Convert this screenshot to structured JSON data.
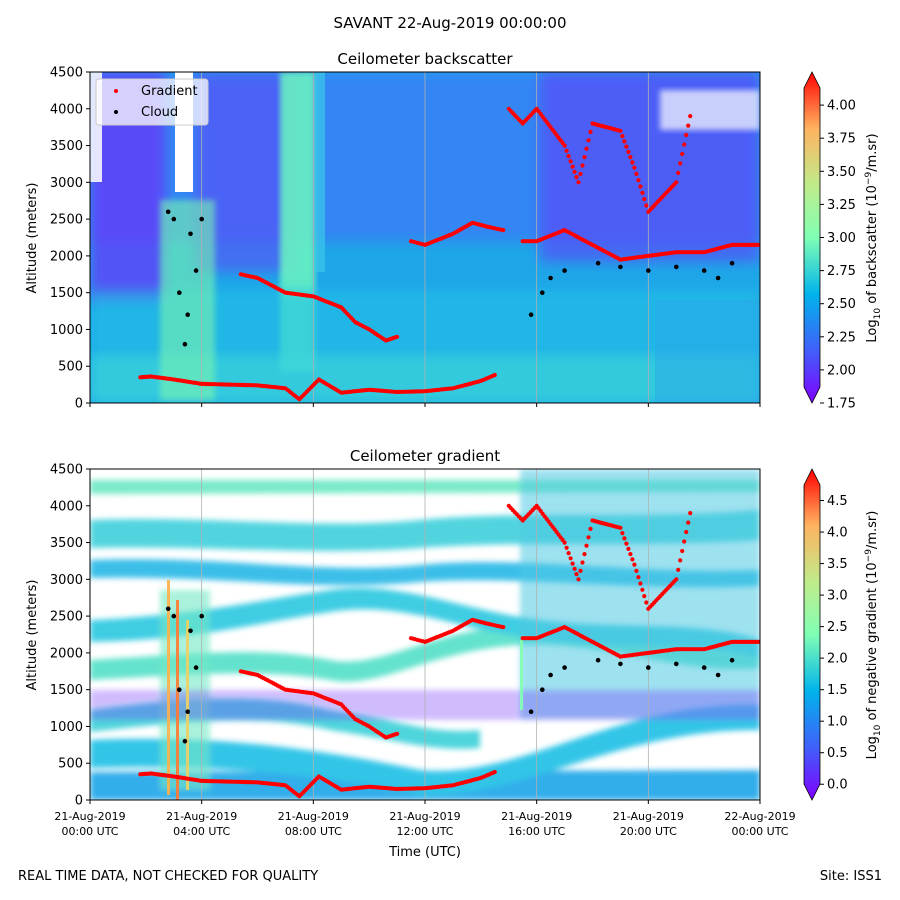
{
  "figure": {
    "title": "SAVANT 22-Aug-2019 00:00:00",
    "footer_note": "REAL TIME DATA, NOT CHECKED FOR QUALITY",
    "footer_site": "Site: ISS1"
  },
  "chart_data": [
    {
      "type": "heatmap",
      "title": "Ceilometer backscatter",
      "ylabel": "Altitude (meters)",
      "xlabel": "",
      "ylim": [
        0,
        4500
      ],
      "yticks": [
        0,
        500,
        1000,
        1500,
        2000,
        2500,
        3000,
        3500,
        4000,
        4500
      ],
      "xlim_hours": [
        0,
        24
      ],
      "grid": "vertical at 4-hour ticks",
      "legend": {
        "placement": "top-left",
        "entries": [
          {
            "label": "Gradient",
            "color": "#ff0000"
          },
          {
            "label": "Cloud",
            "color": "#000000"
          }
        ]
      },
      "colorbar": {
        "label_prefix": "Log",
        "label_sub": "10",
        "label_mid": " of backscatter (10",
        "label_sup": "−9",
        "label_suffix": "/m.sr)",
        "range": [
          1.75,
          4.25
        ],
        "ticks": [
          "1.75",
          "2.00",
          "2.25",
          "2.50",
          "2.75",
          "3.00",
          "3.25",
          "3.50",
          "3.75",
          "4.00"
        ],
        "colormap": "rainbow"
      },
      "gradient_series": [
        {
          "segment": "boundary-layer",
          "hours": [
            1.8,
            2.2,
            3.0,
            4.0,
            5.0,
            6.0,
            7.0,
            7.5,
            8.2,
            9.0,
            10.0,
            11.0,
            12.0,
            13.0,
            14.0,
            14.5
          ],
          "altitude_m": [
            350,
            360,
            320,
            260,
            250,
            240,
            200,
            50,
            320,
            140,
            180,
            150,
            160,
            200,
            300,
            380
          ]
        },
        {
          "segment": "descending-layer",
          "hours": [
            5.4,
            6.0,
            7.0,
            8.0,
            9.0,
            9.5,
            10.0,
            10.6,
            11.0
          ],
          "altitude_m": [
            1750,
            1700,
            1500,
            1450,
            1300,
            1100,
            1000,
            850,
            900
          ]
        },
        {
          "segment": "rising-layer",
          "hours": [
            11.5,
            12.0,
            13.0,
            13.7,
            14.2,
            14.8
          ],
          "altitude_m": [
            2200,
            2150,
            2300,
            2450,
            2400,
            2350
          ]
        },
        {
          "segment": "evening-layer",
          "hours": [
            15.5,
            16.0,
            17.0,
            18.0,
            19.0,
            20.0,
            21.0,
            22.0,
            23.0,
            24.0
          ],
          "altitude_m": [
            2200,
            2200,
            2350,
            2150,
            1950,
            2000,
            2050,
            2050,
            2150,
            2150
          ]
        },
        {
          "segment": "upper-scatter",
          "hours": [
            15.0,
            15.5,
            16.0,
            17.0,
            17.5,
            18.0,
            19.0,
            19.5,
            20.0,
            21.0,
            21.5
          ],
          "altitude_m": [
            4000,
            3800,
            4000,
            3500,
            3000,
            3800,
            3700,
            3200,
            2600,
            3000,
            3900
          ]
        }
      ],
      "cloud_series": [
        {
          "hours": [
            2.8,
            3.0,
            3.2,
            3.4,
            3.5,
            3.6,
            3.8,
            4.0
          ],
          "altitude_m": [
            2600,
            2500,
            1500,
            800,
            1200,
            2300,
            1800,
            2500
          ]
        },
        {
          "hours": [
            15.8,
            16.2,
            16.5,
            17.0
          ],
          "altitude_m": [
            1200,
            1500,
            1700,
            1800
          ]
        },
        {
          "hours": [
            18.2,
            19.0,
            20.0,
            21.0,
            22.0,
            22.5,
            23.0
          ],
          "altitude_m": [
            1900,
            1850,
            1800,
            1850,
            1800,
            1700,
            1900
          ]
        }
      ]
    },
    {
      "type": "heatmap",
      "title": "Ceilometer gradient",
      "ylabel": "Altitude (meters)",
      "xlabel": "Time (UTC)",
      "ylim": [
        0,
        4500
      ],
      "yticks": [
        0,
        500,
        1000,
        1500,
        2000,
        2500,
        3000,
        3500,
        4000,
        4500
      ],
      "xlim_hours": [
        0,
        24
      ],
      "xticks": [
        {
          "hours": 0,
          "date": "21-Aug-2019",
          "time": "00:00 UTC"
        },
        {
          "hours": 4,
          "date": "21-Aug-2019",
          "time": "04:00 UTC"
        },
        {
          "hours": 8,
          "date": "21-Aug-2019",
          "time": "08:00 UTC"
        },
        {
          "hours": 12,
          "date": "21-Aug-2019",
          "time": "12:00 UTC"
        },
        {
          "hours": 16,
          "date": "21-Aug-2019",
          "time": "16:00 UTC"
        },
        {
          "hours": 20,
          "date": "21-Aug-2019",
          "time": "20:00 UTC"
        },
        {
          "hours": 24,
          "date": "22-Aug-2019",
          "time": "00:00 UTC"
        }
      ],
      "grid": "vertical at 4-hour ticks",
      "colorbar": {
        "label_prefix": "Log",
        "label_sub": "10",
        "label_mid": " of negative gradient (10",
        "label_sup": "−9",
        "label_suffix": "/m.sr)",
        "range": [
          -0.25,
          5.0
        ],
        "ticks": [
          "0.0",
          "0.5",
          "1.0",
          "1.5",
          "2.0",
          "2.5",
          "3.0",
          "3.5",
          "4.0",
          "4.5"
        ],
        "colormap": "rainbow"
      }
    }
  ]
}
